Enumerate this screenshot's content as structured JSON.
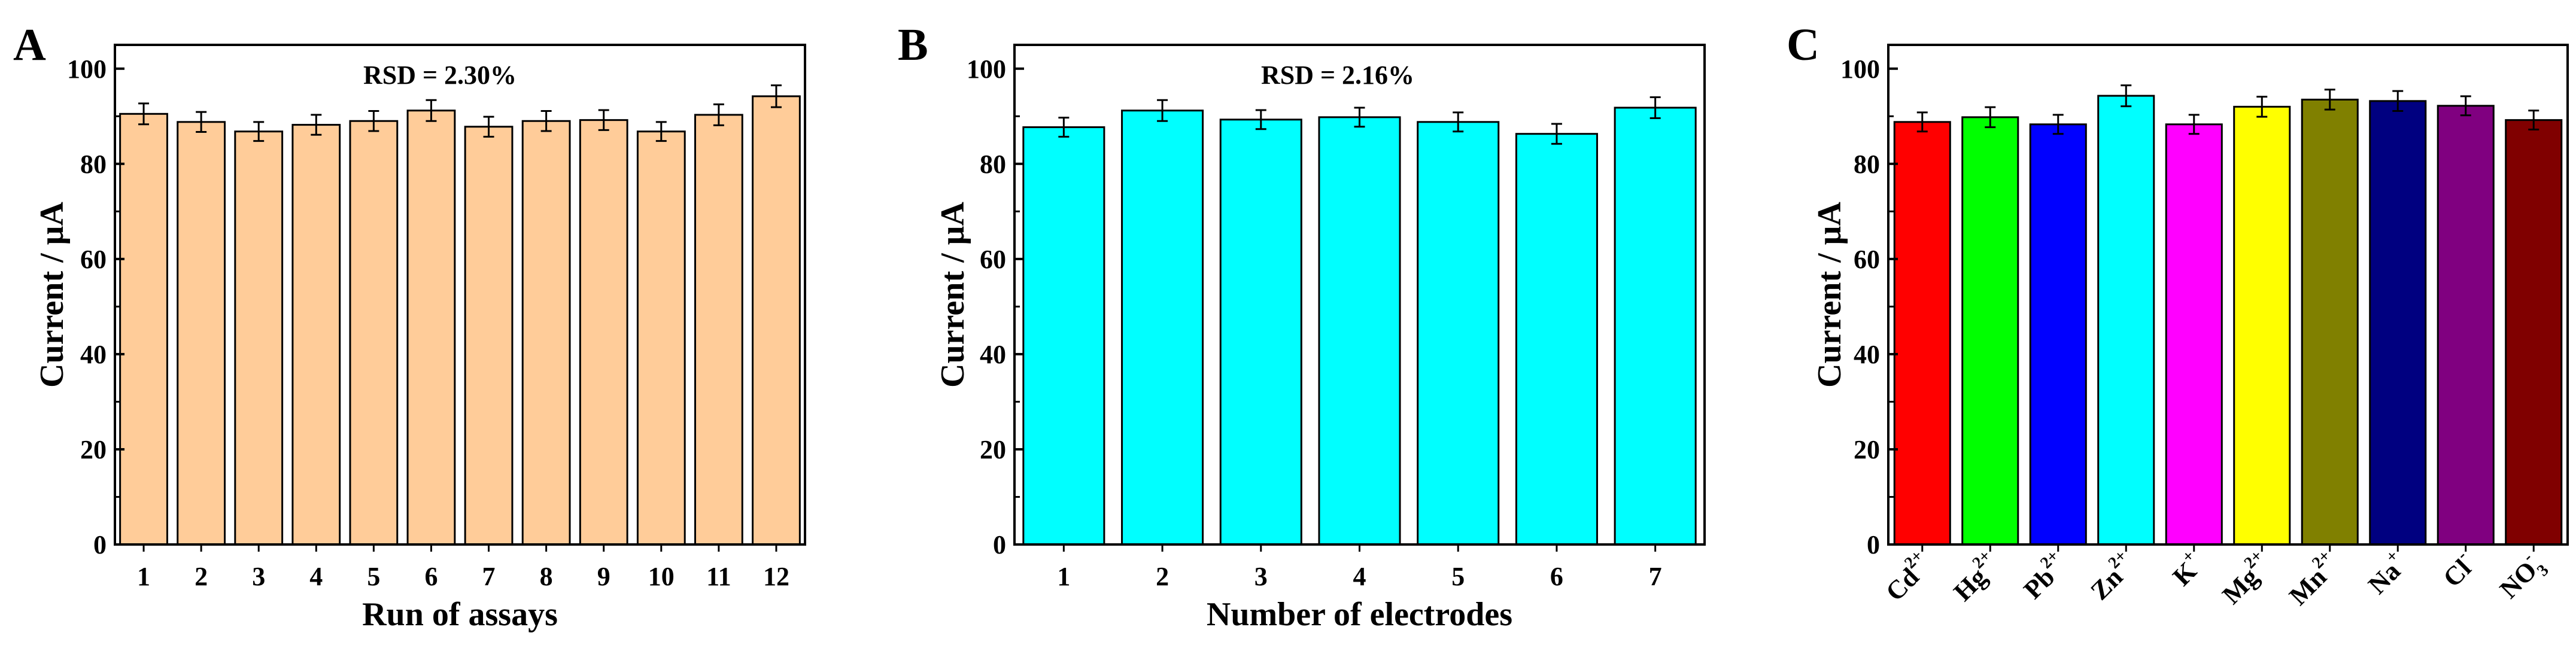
{
  "chart_data": [
    {
      "panel": "A",
      "type": "bar",
      "categories": [
        "1",
        "2",
        "3",
        "4",
        "5",
        "6",
        "7",
        "8",
        "9",
        "10",
        "11",
        "12"
      ],
      "values": [
        90.5,
        88.8,
        86.8,
        88.2,
        89.0,
        91.2,
        87.8,
        89.0,
        89.2,
        86.8,
        90.3,
        94.2
      ],
      "errors": [
        2.2,
        2.1,
        2.0,
        2.1,
        2.1,
        2.2,
        2.1,
        2.1,
        2.1,
        2.0,
        2.2,
        2.3
      ],
      "color": "#FFCC99",
      "ylabel": "Current / μA",
      "xlabel": "Run of assays",
      "annotation": "RSD = 2.30%",
      "ylim": [
        0,
        105
      ],
      "yticks": [
        0,
        20,
        40,
        60,
        80,
        100
      ]
    },
    {
      "panel": "B",
      "type": "bar",
      "categories": [
        "1",
        "2",
        "3",
        "4",
        "5",
        "6",
        "7"
      ],
      "values": [
        87.7,
        91.2,
        89.3,
        89.8,
        88.8,
        86.3,
        91.8
      ],
      "errors": [
        2.0,
        2.2,
        2.0,
        2.0,
        2.0,
        2.1,
        2.2
      ],
      "color": "#00FFFF",
      "ylabel": "Current / μA",
      "xlabel": "Number of electrodes",
      "annotation": "RSD = 2.16%",
      "ylim": [
        0,
        105
      ],
      "yticks": [
        0,
        20,
        40,
        60,
        80,
        100
      ]
    },
    {
      "panel": "C",
      "type": "bar",
      "categories": [
        {
          "base": "Cd",
          "sup": "2+",
          "sub": ""
        },
        {
          "base": "Hg",
          "sup": "2+",
          "sub": ""
        },
        {
          "base": "Pb",
          "sup": "2+",
          "sub": ""
        },
        {
          "base": "Zn",
          "sup": "2+",
          "sub": ""
        },
        {
          "base": "K",
          "sup": "+",
          "sub": ""
        },
        {
          "base": "Mg",
          "sup": "2+",
          "sub": ""
        },
        {
          "base": "Mn",
          "sup": "2+",
          "sub": ""
        },
        {
          "base": "Na",
          "sup": "+",
          "sub": ""
        },
        {
          "base": "Cl",
          "sup": "-",
          "sub": ""
        },
        {
          "base": "NO",
          "sup": "-",
          "sub": "3"
        }
      ],
      "values": [
        88.8,
        89.8,
        88.3,
        94.3,
        88.3,
        92.0,
        93.5,
        93.2,
        92.2,
        89.2
      ],
      "errors": [
        2.0,
        2.1,
        2.0,
        2.2,
        2.0,
        2.1,
        2.1,
        2.1,
        2.0,
        2.0
      ],
      "colors": [
        "#FF0000",
        "#00FF00",
        "#0000FF",
        "#00FFFF",
        "#FF00FF",
        "#FFFF00",
        "#808000",
        "#000080",
        "#800080",
        "#800000"
      ],
      "ylabel": "Current / μA",
      "xlabel": "",
      "ylim": [
        0,
        105
      ],
      "yticks": [
        0,
        20,
        40,
        60,
        80,
        100
      ]
    }
  ]
}
